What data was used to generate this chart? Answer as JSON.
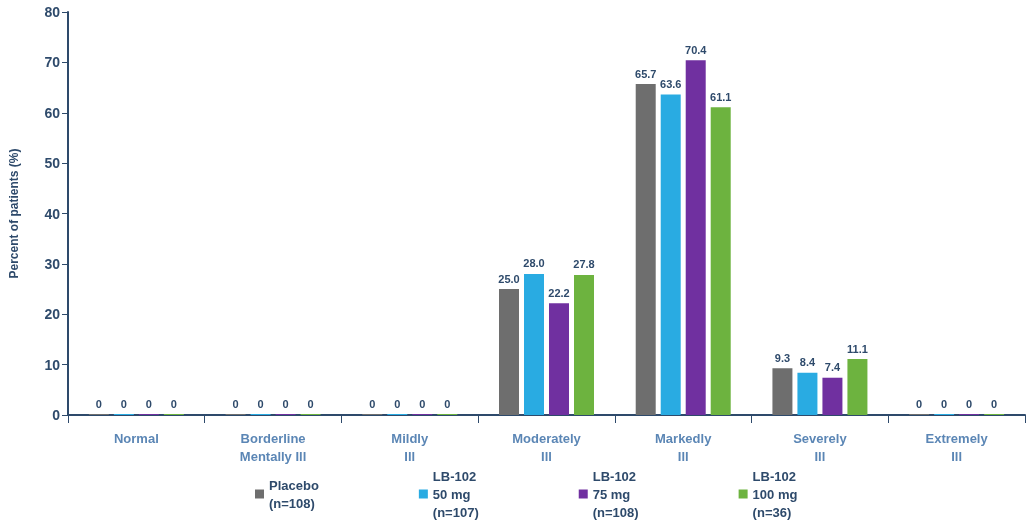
{
  "chart_data": {
    "type": "bar",
    "ylabel": "Percent of patients (%)",
    "categories": [
      "Normal",
      "Borderline\nMentally Ill",
      "Mildly\nIll",
      "Moderately\nIll",
      "Markedly\nIll",
      "Severely\nIll",
      "Extremely\nIll"
    ],
    "series": [
      {
        "name": "Placebo\n(n=108)",
        "color": "#6e6e6e",
        "values": [
          0,
          0,
          0,
          25.0,
          65.7,
          9.3,
          0
        ],
        "value_labels": [
          "0",
          "0",
          "0",
          "25.0",
          "65.7",
          "9.3",
          "0"
        ]
      },
      {
        "name": "LB-102\n50 mg\n(n=107)",
        "color": "#29abe2",
        "values": [
          0,
          0,
          0,
          28.0,
          63.6,
          8.4,
          0
        ],
        "value_labels": [
          "0",
          "0",
          "0",
          "28.0",
          "63.6",
          "8.4",
          "0"
        ]
      },
      {
        "name": "LB-102\n75 mg\n(n=108)",
        "color": "#7030a0",
        "values": [
          0,
          0,
          0,
          22.2,
          70.4,
          7.4,
          0
        ],
        "value_labels": [
          "0",
          "0",
          "0",
          "22.2",
          "70.4",
          "7.4",
          "0"
        ]
      },
      {
        "name": "LB-102\n100 mg\n(n=36)",
        "color": "#6db33f",
        "values": [
          0,
          0,
          0,
          27.8,
          61.1,
          11.1,
          0
        ],
        "value_labels": [
          "0",
          "0",
          "0",
          "27.8",
          "61.1",
          "11.1",
          "0"
        ]
      }
    ],
    "ylim": [
      0,
      80
    ],
    "yticks": [
      0,
      10,
      20,
      30,
      40,
      50,
      60,
      70,
      80
    ],
    "grid": false,
    "legend": "bottom"
  }
}
